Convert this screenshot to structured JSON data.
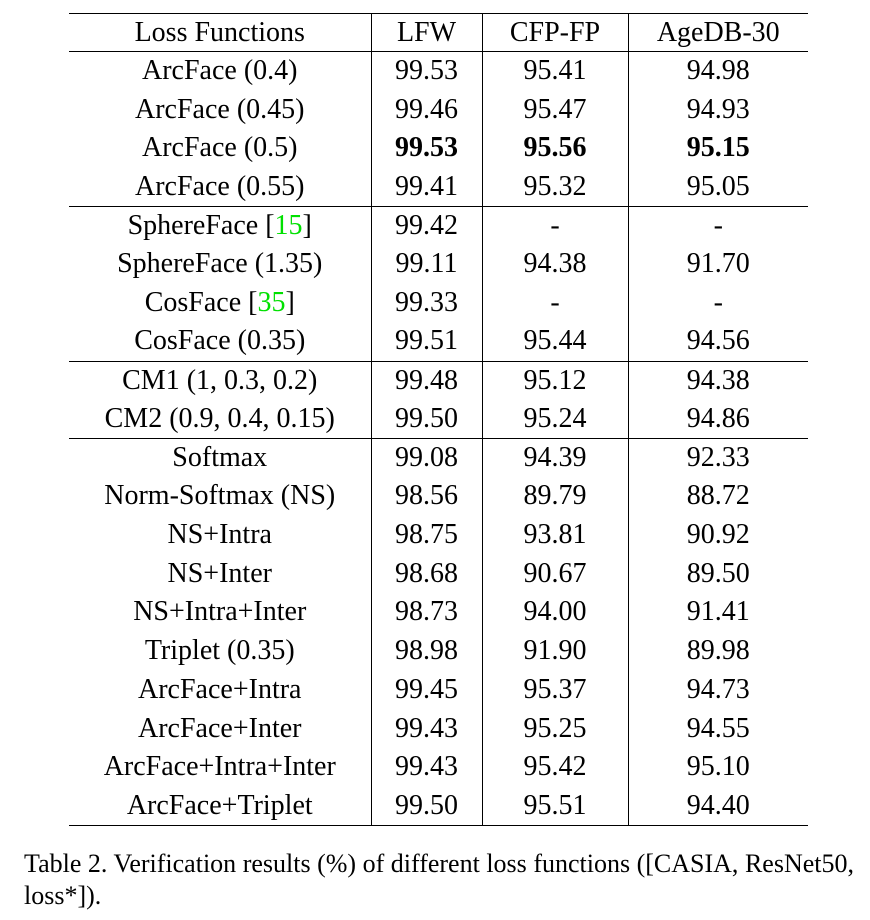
{
  "table": {
    "headers": [
      "Loss Functions",
      "LFW",
      "CFP-FP",
      "AgeDB-30"
    ],
    "rows": [
      {
        "name": "ArcFace (0.4)",
        "ref": "",
        "suffix": "",
        "lfw": "99.53",
        "cfp": "95.41",
        "age": "94.98",
        "bold": false,
        "group_start": true
      },
      {
        "name": "ArcFace (0.45)",
        "ref": "",
        "suffix": "",
        "lfw": "99.46",
        "cfp": "95.47",
        "age": "94.93",
        "bold": false,
        "group_start": false
      },
      {
        "name": "ArcFace (0.5)",
        "ref": "",
        "suffix": "",
        "lfw": "99.53",
        "cfp": "95.56",
        "age": "95.15",
        "bold": true,
        "group_start": false
      },
      {
        "name": "ArcFace (0.55)",
        "ref": "",
        "suffix": "",
        "lfw": "99.41",
        "cfp": "95.32",
        "age": "95.05",
        "bold": false,
        "group_start": false
      },
      {
        "name": "SphereFace [",
        "ref": "15",
        "suffix": "]",
        "lfw": "99.42",
        "cfp": "-",
        "age": "-",
        "bold": false,
        "group_start": true
      },
      {
        "name": "SphereFace (1.35)",
        "ref": "",
        "suffix": "",
        "lfw": "99.11",
        "cfp": "94.38",
        "age": "91.70",
        "bold": false,
        "group_start": false
      },
      {
        "name": "CosFace [",
        "ref": "35",
        "suffix": "]",
        "lfw": "99.33",
        "cfp": "-",
        "age": "-",
        "bold": false,
        "group_start": false
      },
      {
        "name": "CosFace (0.35)",
        "ref": "",
        "suffix": "",
        "lfw": "99.51",
        "cfp": "95.44",
        "age": "94.56",
        "bold": false,
        "group_start": false
      },
      {
        "name": "CM1 (1, 0.3, 0.2)",
        "ref": "",
        "suffix": "",
        "lfw": "99.48",
        "cfp": "95.12",
        "age": "94.38",
        "bold": false,
        "group_start": true
      },
      {
        "name": "CM2 (0.9, 0.4, 0.15)",
        "ref": "",
        "suffix": "",
        "lfw": "99.50",
        "cfp": "95.24",
        "age": "94.86",
        "bold": false,
        "group_start": false
      },
      {
        "name": "Softmax",
        "ref": "",
        "suffix": "",
        "lfw": "99.08",
        "cfp": "94.39",
        "age": "92.33",
        "bold": false,
        "group_start": true
      },
      {
        "name": "Norm-Softmax (NS)",
        "ref": "",
        "suffix": "",
        "lfw": "98.56",
        "cfp": "89.79",
        "age": "88.72",
        "bold": false,
        "group_start": false
      },
      {
        "name": "NS+Intra",
        "ref": "",
        "suffix": "",
        "lfw": "98.75",
        "cfp": "93.81",
        "age": "90.92",
        "bold": false,
        "group_start": false
      },
      {
        "name": "NS+Inter",
        "ref": "",
        "suffix": "",
        "lfw": "98.68",
        "cfp": "90.67",
        "age": "89.50",
        "bold": false,
        "group_start": false
      },
      {
        "name": "NS+Intra+Inter",
        "ref": "",
        "suffix": "",
        "lfw": "98.73",
        "cfp": "94.00",
        "age": "91.41",
        "bold": false,
        "group_start": false
      },
      {
        "name": "Triplet (0.35)",
        "ref": "",
        "suffix": "",
        "lfw": "98.98",
        "cfp": "91.90",
        "age": "89.98",
        "bold": false,
        "group_start": false
      },
      {
        "name": "ArcFace+Intra",
        "ref": "",
        "suffix": "",
        "lfw": "99.45",
        "cfp": "95.37",
        "age": "94.73",
        "bold": false,
        "group_start": false
      },
      {
        "name": "ArcFace+Inter",
        "ref": "",
        "suffix": "",
        "lfw": "99.43",
        "cfp": "95.25",
        "age": "94.55",
        "bold": false,
        "group_start": false
      },
      {
        "name": "ArcFace+Intra+Inter",
        "ref": "",
        "suffix": "",
        "lfw": "99.43",
        "cfp": "95.42",
        "age": "95.10",
        "bold": false,
        "group_start": false
      },
      {
        "name": "ArcFace+Triplet",
        "ref": "",
        "suffix": "",
        "lfw": "99.50",
        "cfp": "95.51",
        "age": "94.40",
        "bold": false,
        "group_start": false
      }
    ]
  },
  "caption": "Table 2. Verification results (%) of different loss functions ([CASIA, ResNet50, loss*]).",
  "colors": {
    "text": "#000000",
    "reference_link": "#00e000"
  }
}
